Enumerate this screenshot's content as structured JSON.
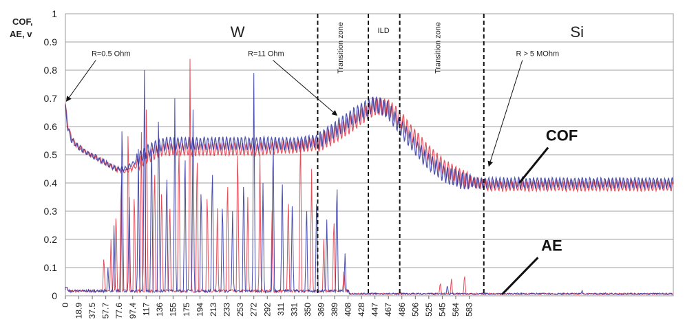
{
  "chart_data": {
    "type": "line",
    "y_axis_label_line1": "COF,",
    "y_axis_label_line2": "AE, v",
    "ylim": [
      0,
      1
    ],
    "y_ticks": [
      "0",
      "0.1",
      "0.2",
      "0.3",
      "0.4",
      "0.5",
      "0.6",
      "0.7",
      "0.8",
      "0.9",
      "1"
    ],
    "x_ticks": [
      "0",
      "18.9",
      "37.5",
      "57.7",
      "77.6",
      "97.4",
      "117",
      "136",
      "155",
      "175",
      "194",
      "213",
      "233",
      "253",
      "272",
      "292",
      "311",
      "331",
      "350",
      "369",
      "389",
      "408",
      "428",
      "447",
      "467",
      "486",
      "506",
      "525",
      "545",
      "564",
      "583"
    ],
    "xlim": [
      0,
      600
    ],
    "grid": true,
    "region_boundaries": [
      249,
      299,
      330,
      413
    ],
    "regions": [
      {
        "label": "W",
        "x": 170
      },
      {
        "label": "Transition zone",
        "x": 274
      },
      {
        "label": "ILD",
        "x": 314
      },
      {
        "label": "Transition zone",
        "x": 370
      },
      {
        "label": "Si",
        "x": 505
      }
    ],
    "annotations": [
      {
        "text": "R=0.5 Ohm",
        "x": 45,
        "y": 0.85,
        "arrow_to": [
          1,
          0.69
        ]
      },
      {
        "text": "R=11 Ohm",
        "x": 198,
        "y": 0.85,
        "arrow_to": [
          268,
          0.64
        ]
      },
      {
        "text": "R > 5 MOhm",
        "x": 466,
        "y": 0.85,
        "arrow_to": [
          418,
          0.46
        ]
      },
      {
        "text": "COF",
        "x": 490,
        "y": 0.55,
        "arrow_to": [
          448,
          0.4
        ]
      },
      {
        "text": "AE",
        "x": 480,
        "y": 0.16,
        "arrow_to": [
          431,
          0.005
        ]
      }
    ],
    "series": [
      {
        "color": "#e03040",
        "cof_envelope": [
          [
            0,
            0.68
          ],
          [
            2,
            0.61
          ],
          [
            6,
            0.56
          ],
          [
            12,
            0.53
          ],
          [
            20,
            0.51
          ],
          [
            30,
            0.49
          ],
          [
            40,
            0.47
          ],
          [
            50,
            0.45
          ],
          [
            60,
            0.44
          ],
          [
            70,
            0.46
          ],
          [
            80,
            0.49
          ],
          [
            90,
            0.51
          ],
          [
            100,
            0.52
          ],
          [
            120,
            0.52
          ],
          [
            150,
            0.52
          ],
          [
            190,
            0.52
          ],
          [
            230,
            0.53
          ],
          [
            250,
            0.54
          ],
          [
            270,
            0.58
          ],
          [
            290,
            0.63
          ],
          [
            305,
            0.67
          ],
          [
            318,
            0.67
          ],
          [
            330,
            0.63
          ],
          [
            345,
            0.56
          ],
          [
            360,
            0.5
          ],
          [
            375,
            0.45
          ],
          [
            390,
            0.42
          ],
          [
            405,
            0.4
          ],
          [
            420,
            0.39
          ],
          [
            450,
            0.39
          ],
          [
            500,
            0.39
          ],
          [
            550,
            0.39
          ],
          [
            600,
            0.39
          ]
        ],
        "ae_spikes": [
          [
            38,
            0.15
          ],
          [
            45,
            0.2
          ],
          [
            50,
            0.32
          ],
          [
            55,
            0.46
          ],
          [
            62,
            0.66
          ],
          [
            68,
            0.4
          ],
          [
            75,
            0.58
          ],
          [
            80,
            0.77
          ],
          [
            88,
            0.5
          ],
          [
            95,
            0.42
          ],
          [
            103,
            0.36
          ],
          [
            112,
            0.6
          ],
          [
            123,
            0.84
          ],
          [
            130,
            0.55
          ],
          [
            140,
            0.4
          ],
          [
            150,
            0.31
          ],
          [
            160,
            0.45
          ],
          [
            170,
            0.58
          ],
          [
            180,
            0.35
          ],
          [
            192,
            0.5
          ],
          [
            204,
            0.3
          ],
          [
            220,
            0.38
          ],
          [
            232,
            0.63
          ],
          [
            243,
            0.45
          ],
          [
            255,
            0.2
          ],
          [
            265,
            0.3
          ],
          [
            275,
            0.1
          ],
          [
            370,
            0.05
          ],
          [
            381,
            0.06
          ],
          [
            394,
            0.08
          ]
        ]
      },
      {
        "color": "#2a2f9e",
        "cof_envelope": [
          [
            0,
            0.67
          ],
          [
            2,
            0.6
          ],
          [
            6,
            0.55
          ],
          [
            12,
            0.53
          ],
          [
            20,
            0.51
          ],
          [
            30,
            0.49
          ],
          [
            40,
            0.47
          ],
          [
            50,
            0.45
          ],
          [
            60,
            0.45
          ],
          [
            70,
            0.48
          ],
          [
            80,
            0.51
          ],
          [
            90,
            0.53
          ],
          [
            100,
            0.54
          ],
          [
            120,
            0.54
          ],
          [
            150,
            0.54
          ],
          [
            190,
            0.54
          ],
          [
            230,
            0.54
          ],
          [
            250,
            0.55
          ],
          [
            270,
            0.6
          ],
          [
            290,
            0.65
          ],
          [
            305,
            0.68
          ],
          [
            318,
            0.66
          ],
          [
            330,
            0.6
          ],
          [
            345,
            0.53
          ],
          [
            360,
            0.47
          ],
          [
            375,
            0.43
          ],
          [
            390,
            0.41
          ],
          [
            405,
            0.4
          ],
          [
            420,
            0.4
          ],
          [
            450,
            0.4
          ],
          [
            500,
            0.4
          ],
          [
            550,
            0.4
          ],
          [
            600,
            0.4
          ]
        ],
        "ae_spikes": [
          [
            42,
            0.1
          ],
          [
            48,
            0.25
          ],
          [
            56,
            0.68
          ],
          [
            63,
            0.35
          ],
          [
            72,
            0.52
          ],
          [
            78,
            0.8
          ],
          [
            85,
            0.6
          ],
          [
            92,
            0.72
          ],
          [
            100,
            0.48
          ],
          [
            108,
            0.7
          ],
          [
            118,
            0.56
          ],
          [
            126,
            0.66
          ],
          [
            134,
            0.42
          ],
          [
            145,
            0.5
          ],
          [
            155,
            0.36
          ],
          [
            165,
            0.3
          ],
          [
            176,
            0.45
          ],
          [
            186,
            0.79
          ],
          [
            195,
            0.4
          ],
          [
            205,
            0.61
          ],
          [
            214,
            0.46
          ],
          [
            224,
            0.37
          ],
          [
            238,
            0.35
          ],
          [
            248,
            0.38
          ],
          [
            258,
            0.27
          ],
          [
            268,
            0.44
          ],
          [
            276,
            0.15
          ],
          [
            330,
            0.02
          ],
          [
            377,
            0.04
          ],
          [
            510,
            0.02
          ]
        ]
      }
    ]
  }
}
